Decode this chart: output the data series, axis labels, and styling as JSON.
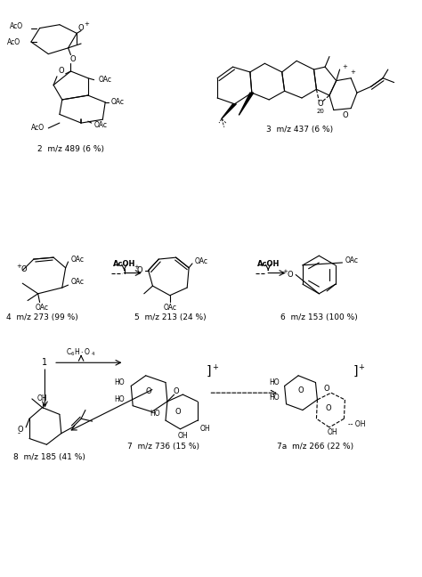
{
  "background_color": "#ffffff",
  "figure_width": 4.74,
  "figure_height": 6.48,
  "dpi": 100,
  "labels": {
    "label2": "2  m/z 489 (6 %)",
    "label3": "3  m/z 437 (6 %)",
    "label4": "4  m/z 273 (99 %)",
    "label5": "5  m/z 213 (24 %)",
    "label6": "6  m/z 153 (100 %)",
    "label7": "7  m/z 736 (15 %)",
    "label7a": "7a  m/z 266 (22 %)",
    "label8": "8  m/z 185 (41 %)"
  },
  "line_color": "#000000",
  "line_width": 0.8
}
